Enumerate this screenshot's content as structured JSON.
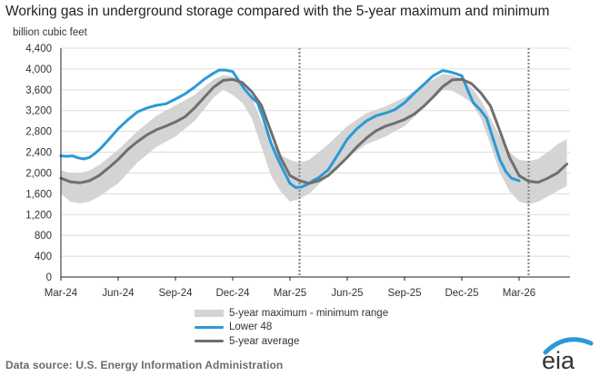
{
  "chart_data": {
    "type": "line",
    "title": "Working gas in underground storage compared with the 5-year maximum and minimum",
    "ylabel": "billion cubic feet",
    "xlabel": "",
    "ylim": [
      0,
      4400
    ],
    "y_ticks": [
      0,
      400,
      800,
      1200,
      1600,
      2000,
      2400,
      2800,
      3200,
      3600,
      4000,
      4400
    ],
    "y_tick_labels": [
      "0",
      "400",
      "800",
      "1,200",
      "1,600",
      "2,000",
      "2,400",
      "2,800",
      "3,200",
      "3,600",
      "4,000",
      "4,400"
    ],
    "x_tick_labels": [
      "Mar-24",
      "Jun-24",
      "Sep-24",
      "Dec-24",
      "Mar-25",
      "Jun-25",
      "Sep-25",
      "Dec-25",
      "Mar-26"
    ],
    "x_tick_months": [
      0,
      3,
      6,
      9,
      12,
      15,
      18,
      21,
      24
    ],
    "x_range_months": [
      0,
      26.5
    ],
    "vertical_markers_months": [
      12.5,
      24.5
    ],
    "grid": true,
    "legend_position": "bottom-center",
    "legend": [
      "5-year maximum - minimum range",
      "Lower 48",
      "5-year average"
    ],
    "series": [
      {
        "name": "5-year maximum - minimum range",
        "kind": "band",
        "color": "#d4d4d4",
        "x_months": [
          0,
          0.5,
          1,
          1.5,
          2,
          3,
          4,
          5,
          6,
          7,
          8,
          8.5,
          9,
          9.5,
          10,
          10.5,
          11,
          11.5,
          12,
          12.5,
          13,
          14,
          15,
          16,
          17,
          18,
          19,
          20,
          20.5,
          21,
          21.5,
          22,
          22.5,
          23,
          23.5,
          24,
          24.5,
          25,
          25.5,
          26,
          26.5
        ],
        "max": [
          2050,
          2000,
          2000,
          2050,
          2150,
          2450,
          2800,
          3100,
          3300,
          3500,
          3800,
          3880,
          3850,
          3700,
          3450,
          3000,
          2600,
          2350,
          2250,
          2200,
          2250,
          2550,
          2900,
          3150,
          3280,
          3450,
          3700,
          3900,
          3880,
          3820,
          3650,
          3400,
          3050,
          2700,
          2400,
          2250,
          2230,
          2270,
          2400,
          2550,
          2650
        ],
        "min": [
          1600,
          1450,
          1420,
          1450,
          1550,
          1800,
          2200,
          2500,
          2700,
          3000,
          3450,
          3600,
          3500,
          3350,
          3050,
          2500,
          1950,
          1650,
          1450,
          1500,
          1600,
          1950,
          2300,
          2550,
          2700,
          2900,
          3250,
          3600,
          3580,
          3480,
          3350,
          3050,
          2550,
          2000,
          1650,
          1450,
          1400,
          1450,
          1550,
          1650,
          1750
        ]
      },
      {
        "name": "Lower 48",
        "kind": "line",
        "color": "#2a9ad6",
        "x_months": [
          0,
          0.3,
          0.6,
          0.9,
          1.2,
          1.5,
          1.8,
          2.1,
          2.5,
          3,
          3.5,
          4,
          4.5,
          5,
          5.5,
          6,
          6.5,
          7,
          7.5,
          8,
          8.3,
          8.6,
          9,
          9.3,
          9.6,
          10,
          10.3,
          10.6,
          11,
          11.3,
          11.6,
          12,
          12.3,
          12.6,
          12.9,
          13.2,
          13.5,
          14,
          14.5,
          15,
          15.5,
          16,
          16.5,
          17,
          17.5,
          18,
          18.5,
          19,
          19.5,
          20,
          20.3,
          20.6,
          21,
          21.3,
          21.6,
          22,
          22.3,
          22.6,
          23,
          23.3,
          23.6,
          24
        ],
        "values": [
          2330,
          2320,
          2330,
          2290,
          2270,
          2300,
          2380,
          2480,
          2640,
          2850,
          3020,
          3170,
          3250,
          3300,
          3330,
          3420,
          3520,
          3650,
          3800,
          3920,
          3980,
          3980,
          3950,
          3780,
          3620,
          3450,
          3350,
          3050,
          2580,
          2320,
          2090,
          1800,
          1720,
          1730,
          1780,
          1850,
          1910,
          2060,
          2350,
          2650,
          2850,
          3000,
          3100,
          3150,
          3220,
          3350,
          3530,
          3700,
          3870,
          3970,
          3950,
          3920,
          3870,
          3600,
          3350,
          3200,
          3050,
          2700,
          2250,
          2030,
          1900,
          1850
        ]
      },
      {
        "name": "5-year average",
        "kind": "line",
        "color": "#6f6f6f",
        "x_months": [
          0,
          0.5,
          1,
          1.5,
          2,
          2.5,
          3,
          3.5,
          4,
          4.5,
          5,
          5.5,
          6,
          6.5,
          7,
          7.5,
          8,
          8.5,
          9,
          9.5,
          10,
          10.5,
          11,
          11.5,
          12,
          12.5,
          13,
          13.5,
          14,
          14.5,
          15,
          15.5,
          16,
          16.5,
          17,
          17.5,
          18,
          18.5,
          19,
          19.5,
          20,
          20.5,
          21,
          21.5,
          22,
          22.5,
          23,
          23.5,
          24,
          24.5,
          25,
          25.5,
          26,
          26.5
        ],
        "values": [
          1900,
          1830,
          1810,
          1850,
          1950,
          2100,
          2260,
          2450,
          2600,
          2730,
          2830,
          2900,
          2980,
          3080,
          3250,
          3450,
          3650,
          3780,
          3800,
          3740,
          3560,
          3300,
          2800,
          2300,
          1950,
          1850,
          1800,
          1850,
          1950,
          2120,
          2300,
          2500,
          2670,
          2810,
          2900,
          2960,
          3030,
          3130,
          3280,
          3460,
          3660,
          3790,
          3800,
          3720,
          3540,
          3290,
          2800,
          2300,
          1950,
          1840,
          1820,
          1900,
          2000,
          2170
        ]
      }
    ]
  },
  "footer": {
    "source": "Data source:  U.S. Energy Information Administration",
    "logo_text": "eia"
  }
}
